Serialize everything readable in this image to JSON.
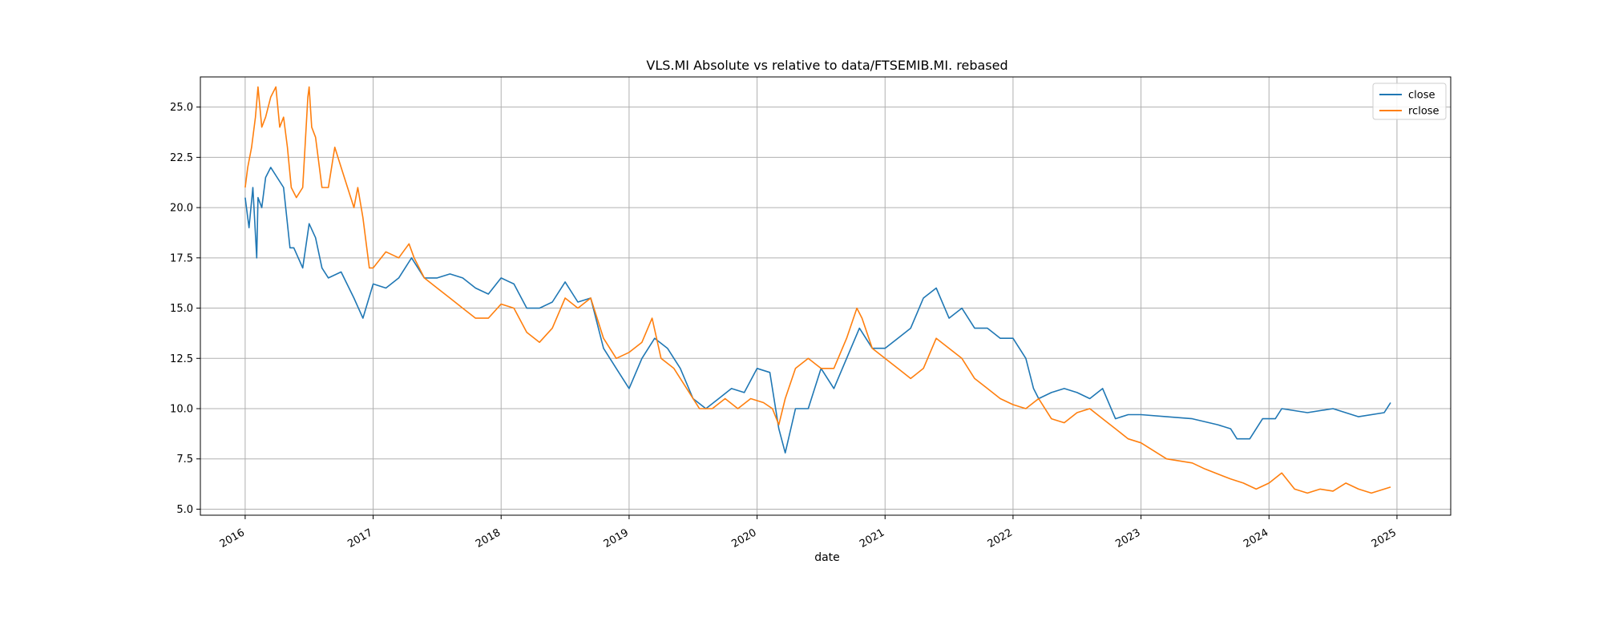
{
  "chart_data": {
    "type": "line",
    "title": "VLS.MI Absolute vs relative to data/FTSEMIB.MI. rebased",
    "xlabel": "date",
    "ylabel": "",
    "xlim": [
      2015.65,
      2025.42
    ],
    "ylim": [
      4.7,
      26.5
    ],
    "x_ticks": [
      2016,
      2017,
      2018,
      2019,
      2020,
      2021,
      2022,
      2023,
      2024,
      2025
    ],
    "x_tick_labels": [
      "2016",
      "2017",
      "2018",
      "2019",
      "2020",
      "2021",
      "2022",
      "2023",
      "2024",
      "2025"
    ],
    "y_ticks": [
      5.0,
      7.5,
      10.0,
      12.5,
      15.0,
      17.5,
      20.0,
      22.5,
      25.0
    ],
    "y_tick_labels": [
      "5.0",
      "7.5",
      "10.0",
      "12.5",
      "15.0",
      "17.5",
      "20.0",
      "22.5",
      "25.0"
    ],
    "grid": true,
    "legend_position": "top-right",
    "series": [
      {
        "name": "close",
        "color": "#1f77b4",
        "x": [
          2016.0,
          2016.03,
          2016.06,
          2016.09,
          2016.1,
          2016.13,
          2016.16,
          2016.2,
          2016.25,
          2016.3,
          2016.35,
          2016.38,
          2016.45,
          2016.5,
          2016.55,
          2016.6,
          2016.65,
          2016.75,
          2016.85,
          2016.92,
          2017.0,
          2017.1,
          2017.2,
          2017.3,
          2017.4,
          2017.5,
          2017.6,
          2017.7,
          2017.8,
          2017.9,
          2018.0,
          2018.1,
          2018.2,
          2018.3,
          2018.4,
          2018.5,
          2018.6,
          2018.7,
          2018.8,
          2018.9,
          2019.0,
          2019.1,
          2019.2,
          2019.3,
          2019.4,
          2019.5,
          2019.6,
          2019.7,
          2019.8,
          2019.9,
          2020.0,
          2020.1,
          2020.17,
          2020.22,
          2020.3,
          2020.4,
          2020.5,
          2020.6,
          2020.7,
          2020.8,
          2020.9,
          2021.0,
          2021.1,
          2021.2,
          2021.3,
          2021.4,
          2021.5,
          2021.6,
          2021.7,
          2021.8,
          2021.9,
          2022.0,
          2022.1,
          2022.16,
          2022.2,
          2022.3,
          2022.4,
          2022.5,
          2022.6,
          2022.7,
          2022.8,
          2022.9,
          2023.0,
          2023.2,
          2023.4,
          2023.6,
          2023.7,
          2023.75,
          2023.85,
          2023.95,
          2024.05,
          2024.1,
          2024.3,
          2024.5,
          2024.7,
          2024.9,
          2024.95
        ],
        "values": [
          20.5,
          19.0,
          21.0,
          17.5,
          20.5,
          20.0,
          21.5,
          22.0,
          21.5,
          21.0,
          18.0,
          18.0,
          17.0,
          19.2,
          18.5,
          17.0,
          16.5,
          16.8,
          15.5,
          14.5,
          16.2,
          16.0,
          16.5,
          17.5,
          16.5,
          16.5,
          16.7,
          16.5,
          16.0,
          15.7,
          16.5,
          16.2,
          15.0,
          15.0,
          15.3,
          16.3,
          15.3,
          15.5,
          13.0,
          12.0,
          11.0,
          12.5,
          13.5,
          13.0,
          12.0,
          10.5,
          10.0,
          10.5,
          11.0,
          10.8,
          12.0,
          11.8,
          9.0,
          7.8,
          10.0,
          10.0,
          12.0,
          11.0,
          12.5,
          14.0,
          13.0,
          13.0,
          13.5,
          14.0,
          15.5,
          16.0,
          14.5,
          15.0,
          14.0,
          14.0,
          13.5,
          13.5,
          12.5,
          11.0,
          10.5,
          10.8,
          11.0,
          10.8,
          10.5,
          11.0,
          9.5,
          9.7,
          9.7,
          9.6,
          9.5,
          9.2,
          9.0,
          8.5,
          8.5,
          9.5,
          9.5,
          10.0,
          9.8,
          10.0,
          9.6,
          9.8,
          10.3
        ]
      },
      {
        "name": "rclose",
        "color": "#ff7f0e",
        "x": [
          2016.0,
          2016.02,
          2016.05,
          2016.08,
          2016.1,
          2016.13,
          2016.16,
          2016.2,
          2016.24,
          2016.27,
          2016.3,
          2016.33,
          2016.36,
          2016.4,
          2016.45,
          2016.49,
          2016.5,
          2016.52,
          2016.55,
          2016.6,
          2016.65,
          2016.7,
          2016.75,
          2016.8,
          2016.85,
          2016.88,
          2016.92,
          2016.97,
          2017.0,
          2017.1,
          2017.2,
          2017.28,
          2017.32,
          2017.4,
          2017.5,
          2017.6,
          2017.7,
          2017.8,
          2017.9,
          2018.0,
          2018.1,
          2018.2,
          2018.3,
          2018.4,
          2018.5,
          2018.6,
          2018.7,
          2018.8,
          2018.9,
          2019.0,
          2019.1,
          2019.18,
          2019.25,
          2019.35,
          2019.45,
          2019.55,
          2019.65,
          2019.75,
          2019.85,
          2019.95,
          2020.05,
          2020.12,
          2020.17,
          2020.22,
          2020.3,
          2020.4,
          2020.5,
          2020.6,
          2020.7,
          2020.78,
          2020.82,
          2020.9,
          2021.0,
          2021.1,
          2021.2,
          2021.3,
          2021.4,
          2021.5,
          2021.6,
          2021.7,
          2021.8,
          2021.9,
          2022.0,
          2022.1,
          2022.2,
          2022.3,
          2022.4,
          2022.5,
          2022.6,
          2022.7,
          2022.8,
          2022.9,
          2023.0,
          2023.2,
          2023.4,
          2023.5,
          2023.7,
          2023.8,
          2023.9,
          2024.0,
          2024.1,
          2024.2,
          2024.3,
          2024.4,
          2024.5,
          2024.6,
          2024.7,
          2024.8,
          2024.9,
          2024.95
        ],
        "values": [
          21.0,
          22.0,
          23.0,
          24.5,
          26.0,
          24.0,
          24.5,
          25.5,
          26.0,
          24.0,
          24.5,
          23.0,
          21.0,
          20.5,
          21.0,
          25.5,
          26.0,
          24.0,
          23.5,
          21.0,
          21.0,
          23.0,
          22.0,
          21.0,
          20.0,
          21.0,
          19.5,
          17.0,
          17.0,
          17.8,
          17.5,
          18.2,
          17.5,
          16.5,
          16.0,
          15.5,
          15.0,
          14.5,
          14.5,
          15.2,
          15.0,
          13.8,
          13.3,
          14.0,
          15.5,
          15.0,
          15.5,
          13.5,
          12.5,
          12.8,
          13.3,
          14.5,
          12.5,
          12.0,
          11.0,
          10.0,
          10.0,
          10.5,
          10.0,
          10.5,
          10.3,
          10.0,
          9.2,
          10.5,
          12.0,
          12.5,
          12.0,
          12.0,
          13.5,
          15.0,
          14.5,
          13.0,
          12.5,
          12.0,
          11.5,
          12.0,
          13.5,
          13.0,
          12.5,
          11.5,
          11.0,
          10.5,
          10.2,
          10.0,
          10.5,
          9.5,
          9.3,
          9.8,
          10.0,
          9.5,
          9.0,
          8.5,
          8.3,
          7.5,
          7.3,
          7.0,
          6.5,
          6.3,
          6.0,
          6.3,
          6.8,
          6.0,
          5.8,
          6.0,
          5.9,
          6.3,
          6.0,
          5.8,
          6.0,
          6.1
        ]
      }
    ]
  }
}
